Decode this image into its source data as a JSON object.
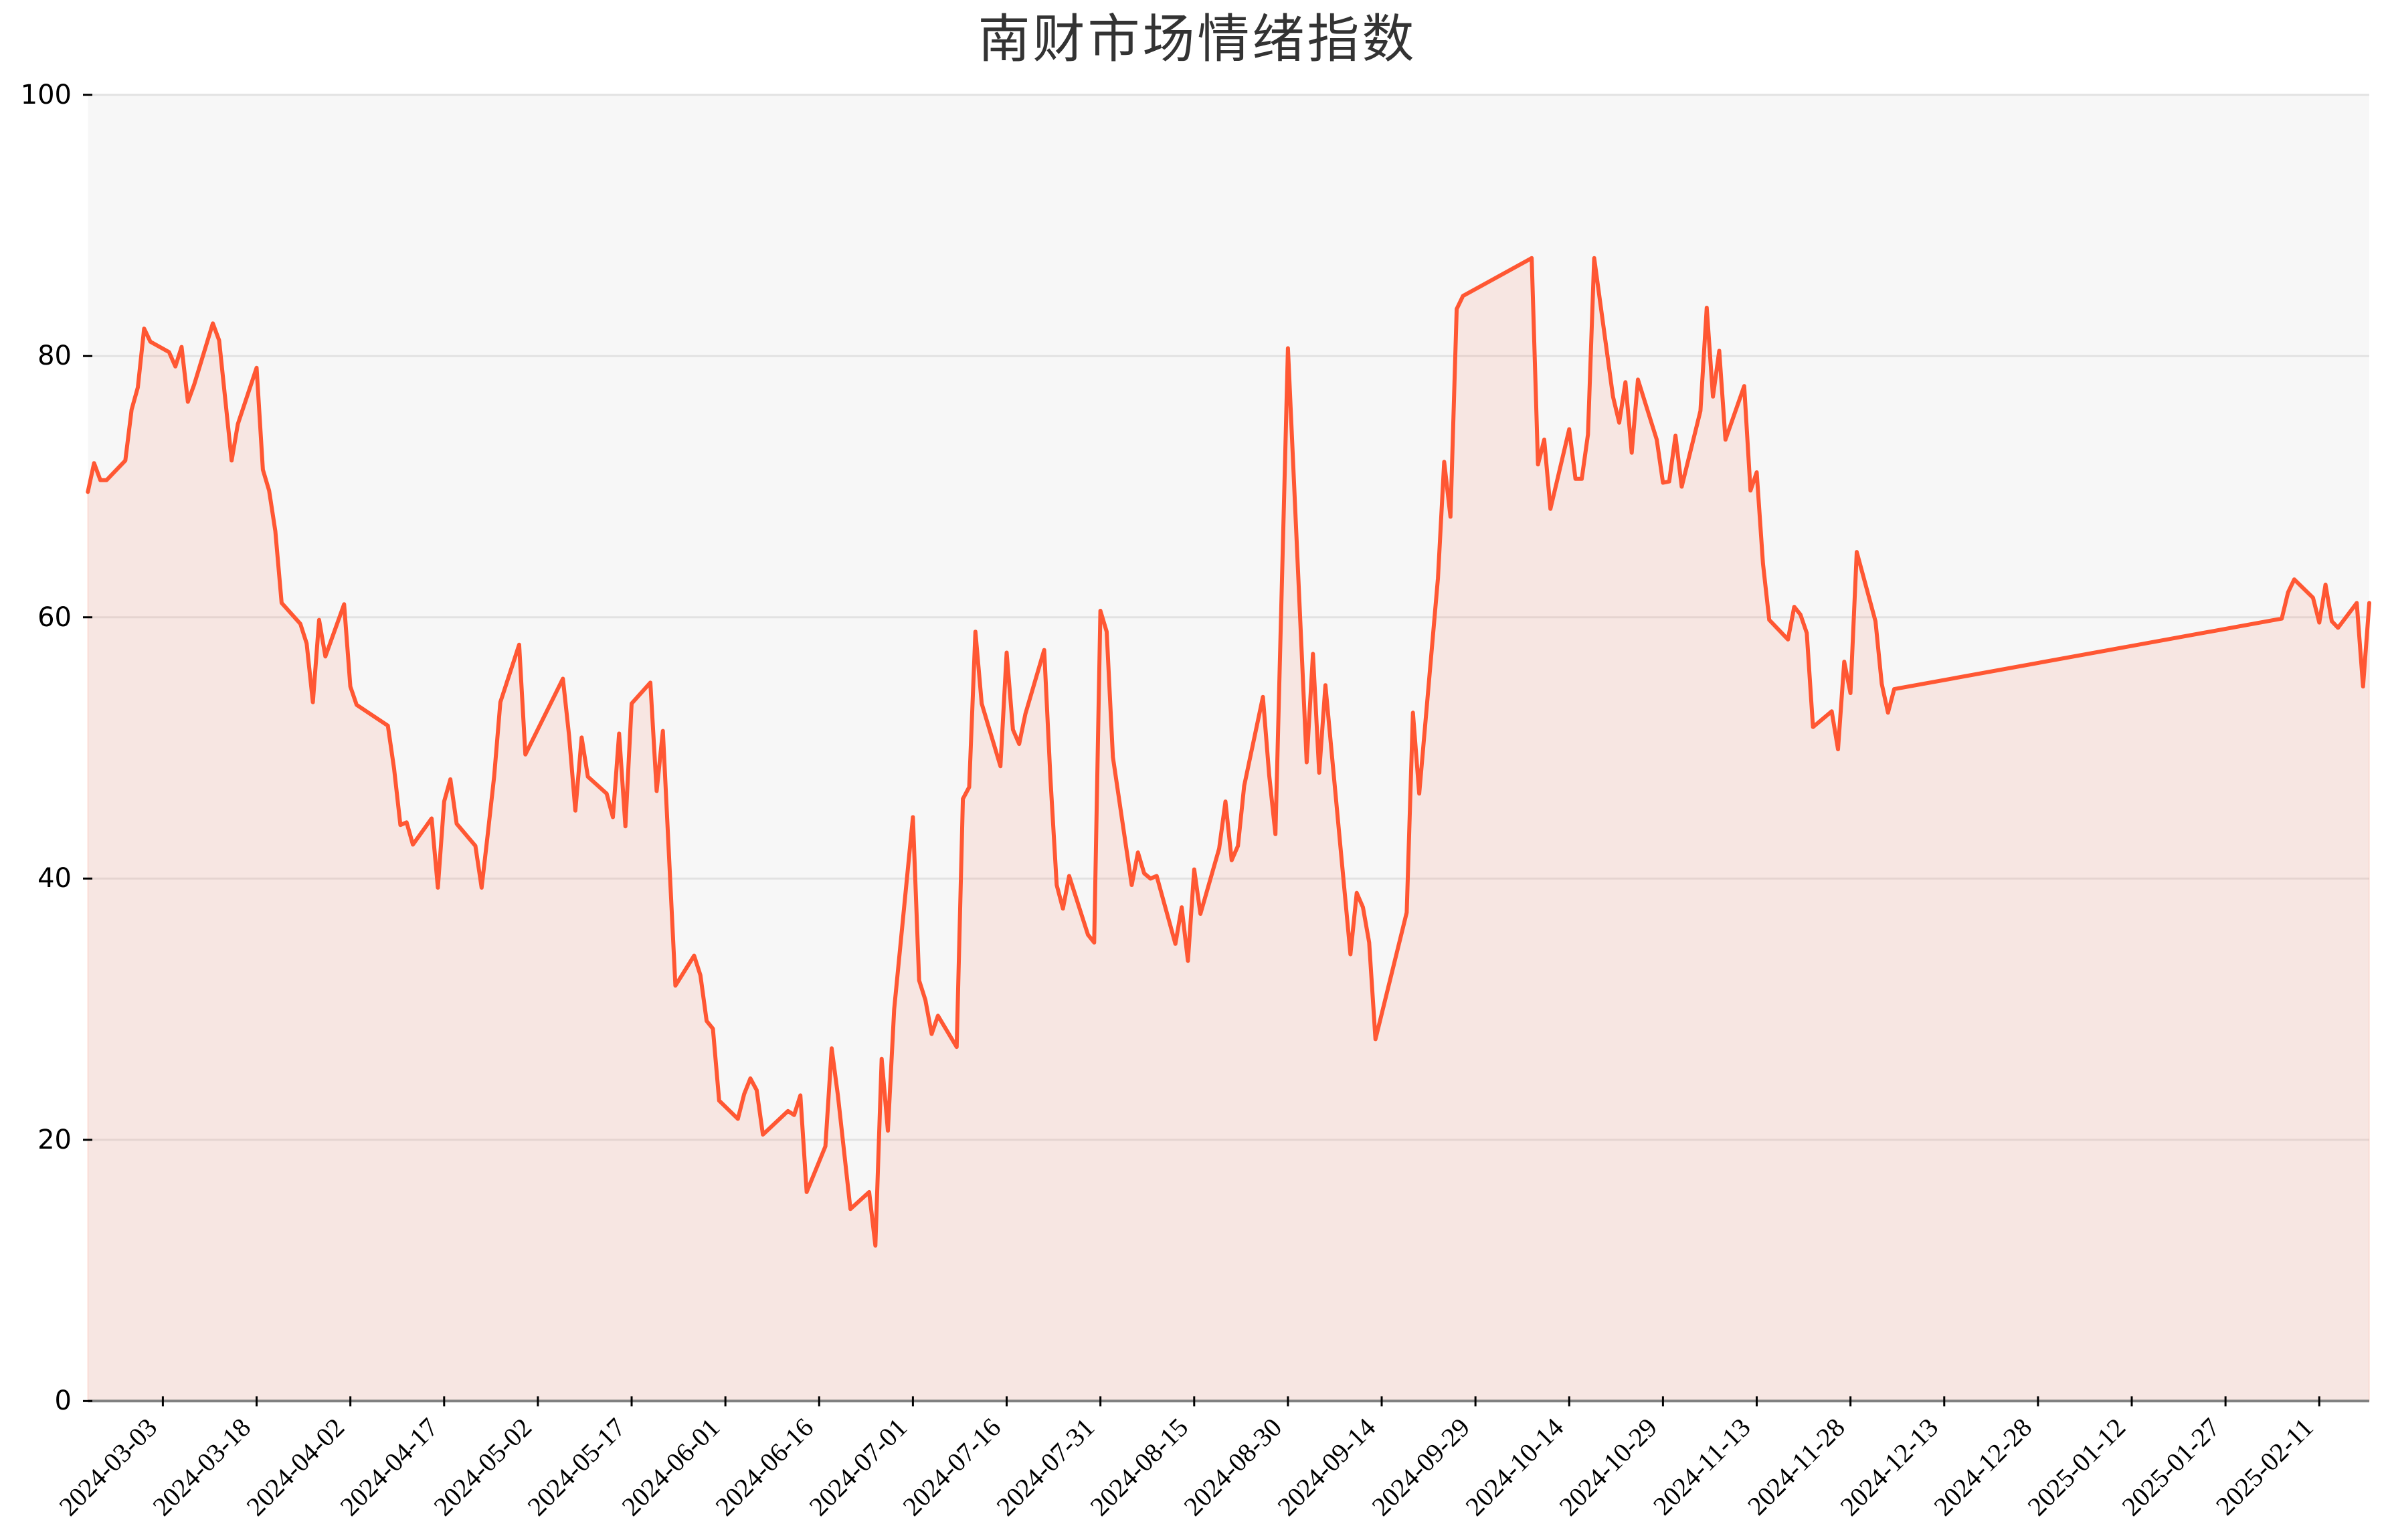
{
  "title": "南财市场情绪指数",
  "style": {
    "line_color": "#FF5733",
    "fill_color": "#FF5733",
    "fill_alpha": 0.1,
    "plot_bg": "#F7F7F7",
    "grid_color": "#E2E2E2",
    "axis_color": "#808080",
    "tick_color": "#000000"
  },
  "chart_data": {
    "type": "area",
    "title": "南财市场情绪指数",
    "xlabel": "",
    "ylabel": "",
    "xlim": [
      "2024-02-20",
      "2025-02-19"
    ],
    "ylim": [
      0,
      100
    ],
    "yticks": [
      0,
      20,
      40,
      60,
      80,
      100
    ],
    "xticks": [
      "2024-03-03",
      "2024-03-18",
      "2024-04-02",
      "2024-04-17",
      "2024-05-02",
      "2024-05-17",
      "2024-06-01",
      "2024-06-16",
      "2024-07-01",
      "2024-07-16",
      "2024-07-31",
      "2024-08-15",
      "2024-08-30",
      "2024-09-14",
      "2024-09-29",
      "2024-10-14",
      "2024-10-29",
      "2024-11-13",
      "2024-11-28",
      "2024-12-13",
      "2024-12-28",
      "2025-01-12",
      "2025-01-27",
      "2025-02-11"
    ],
    "xtick_rotation": 45,
    "grid": {
      "x": false,
      "y": true
    },
    "legend": null,
    "x": [
      "2024-02-20",
      "2024-02-21",
      "2024-02-22",
      "2024-02-23",
      "2024-02-26",
      "2024-02-27",
      "2024-02-28",
      "2024-02-29",
      "2024-03-01",
      "2024-03-04",
      "2024-03-05",
      "2024-03-06",
      "2024-03-07",
      "2024-03-08",
      "2024-03-11",
      "2024-03-12",
      "2024-03-14",
      "2024-03-15",
      "2024-03-18",
      "2024-03-19",
      "2024-03-20",
      "2024-03-21",
      "2024-03-22",
      "2024-03-25",
      "2024-03-26",
      "2024-03-27",
      "2024-03-28",
      "2024-03-29",
      "2024-04-01",
      "2024-04-02",
      "2024-04-03",
      "2024-04-08",
      "2024-04-09",
      "2024-04-10",
      "2024-04-11",
      "2024-04-12",
      "2024-04-15",
      "2024-04-16",
      "2024-04-17",
      "2024-04-18",
      "2024-04-19",
      "2024-04-22",
      "2024-04-23",
      "2024-04-24",
      "2024-04-25",
      "2024-04-26",
      "2024-04-29",
      "2024-04-30",
      "2024-05-06",
      "2024-05-07",
      "2024-05-08",
      "2024-05-09",
      "2024-05-10",
      "2024-05-13",
      "2024-05-14",
      "2024-05-15",
      "2024-05-16",
      "2024-05-17",
      "2024-05-20",
      "2024-05-21",
      "2024-05-22",
      "2024-05-24",
      "2024-05-27",
      "2024-05-28",
      "2024-05-29",
      "2024-05-30",
      "2024-05-31",
      "2024-06-03",
      "2024-06-04",
      "2024-06-05",
      "2024-06-06",
      "2024-06-07",
      "2024-06-11",
      "2024-06-12",
      "2024-06-13",
      "2024-06-14",
      "2024-06-17",
      "2024-06-18",
      "2024-06-19",
      "2024-06-21",
      "2024-06-24",
      "2024-06-25",
      "2024-06-26",
      "2024-06-27",
      "2024-06-28",
      "2024-07-01",
      "2024-07-02",
      "2024-07-03",
      "2024-07-04",
      "2024-07-05",
      "2024-07-08",
      "2024-07-09",
      "2024-07-10",
      "2024-07-11",
      "2024-07-12",
      "2024-07-15",
      "2024-07-16",
      "2024-07-17",
      "2024-07-18",
      "2024-07-19",
      "2024-07-22",
      "2024-07-23",
      "2024-07-24",
      "2024-07-25",
      "2024-07-26",
      "2024-07-29",
      "2024-07-30",
      "2024-07-31",
      "2024-08-01",
      "2024-08-02",
      "2024-08-05",
      "2024-08-06",
      "2024-08-07",
      "2024-08-08",
      "2024-08-09",
      "2024-08-12",
      "2024-08-13",
      "2024-08-14",
      "2024-08-15",
      "2024-08-16",
      "2024-08-19",
      "2024-08-20",
      "2024-08-21",
      "2024-08-22",
      "2024-08-23",
      "2024-08-26",
      "2024-08-27",
      "2024-08-28",
      "2024-08-30",
      "2024-09-02",
      "2024-09-03",
      "2024-09-04",
      "2024-09-05",
      "2024-09-09",
      "2024-09-10",
      "2024-09-11",
      "2024-09-12",
      "2024-09-13",
      "2024-09-18",
      "2024-09-19",
      "2024-09-20",
      "2024-09-23",
      "2024-09-24",
      "2024-09-25",
      "2024-09-26",
      "2024-09-27",
      "2024-10-08",
      "2024-10-09",
      "2024-10-10",
      "2024-10-11",
      "2024-10-14",
      "2024-10-15",
      "2024-10-16",
      "2024-10-17",
      "2024-10-18",
      "2024-10-21",
      "2024-10-22",
      "2024-10-23",
      "2024-10-24",
      "2024-10-25",
      "2024-10-28",
      "2024-10-29",
      "2024-10-30",
      "2024-10-31",
      "2024-11-01",
      "2024-11-04",
      "2024-11-05",
      "2024-11-06",
      "2024-11-07",
      "2024-11-08",
      "2024-11-11",
      "2024-11-12",
      "2024-11-13",
      "2024-11-14",
      "2024-11-15",
      "2024-11-18",
      "2024-11-19",
      "2024-11-20",
      "2024-11-21",
      "2024-11-22",
      "2024-11-25",
      "2024-11-26",
      "2024-11-27",
      "2024-11-28",
      "2024-11-29",
      "2024-12-02",
      "2024-12-03",
      "2024-12-04",
      "2024-12-05",
      "2025-02-05",
      "2025-02-06",
      "2025-02-07",
      "2025-02-10",
      "2025-02-11",
      "2025-02-12",
      "2025-02-13",
      "2025-02-14",
      "2025-02-17",
      "2025-02-18",
      "2025-02-19"
    ],
    "values": [
      69.6,
      71.8,
      70.5,
      70.5,
      72.0,
      75.9,
      77.6,
      82.1,
      81.1,
      80.3,
      79.2,
      80.7,
      76.5,
      77.8,
      82.5,
      81.2,
      72.0,
      74.8,
      79.1,
      71.3,
      69.7,
      66.6,
      61.1,
      59.5,
      58.0,
      53.5,
      59.8,
      57.0,
      61.0,
      54.7,
      53.3,
      51.7,
      48.4,
      44.1,
      44.3,
      42.6,
      44.6,
      39.3,
      45.9,
      47.6,
      44.2,
      42.5,
      39.3,
      43.5,
      47.8,
      53.5,
      57.9,
      49.5,
      55.3,
      50.9,
      45.2,
      50.8,
      47.8,
      46.5,
      44.7,
      51.1,
      44.0,
      53.4,
      55.0,
      46.7,
      51.3,
      31.8,
      34.1,
      32.6,
      29.1,
      28.5,
      23.0,
      21.6,
      23.5,
      24.7,
      23.8,
      20.4,
      22.2,
      21.9,
      23.4,
      16.0,
      19.5,
      27.0,
      23.4,
      14.7,
      16.0,
      11.9,
      26.2,
      20.7,
      30.0,
      44.7,
      32.2,
      30.7,
      28.1,
      29.5,
      27.1,
      46.1,
      47.0,
      58.9,
      53.4,
      48.6,
      57.3,
      51.4,
      50.3,
      52.6,
      57.5,
      47.7,
      39.5,
      37.7,
      40.2,
      35.7,
      35.1,
      60.5,
      58.9,
      49.3,
      39.5,
      42.0,
      40.4,
      40.0,
      40.2,
      35.0,
      37.8,
      33.7,
      40.7,
      37.3,
      42.3,
      45.9,
      41.4,
      42.5,
      47.1,
      53.9,
      47.9,
      43.4,
      80.6,
      48.9,
      57.2,
      48.1,
      54.8,
      34.2,
      38.9,
      37.8,
      35.1,
      27.7,
      37.4,
      52.7,
      46.5,
      63.0,
      71.9,
      67.7,
      83.6,
      84.6,
      87.5,
      71.7,
      73.6,
      68.3,
      74.4,
      70.6,
      70.6,
      74.0,
      87.5,
      76.9,
      74.9,
      78.0,
      72.6,
      78.2,
      73.6,
      70.3,
      70.4,
      73.9,
      70.0,
      75.8,
      83.7,
      76.9,
      80.4,
      73.6,
      77.7,
      69.7,
      71.1,
      64.1,
      59.8,
      58.3,
      60.8,
      60.2,
      58.8,
      51.6,
      52.8,
      49.9,
      56.6,
      54.2,
      65.0,
      59.7,
      54.9,
      52.7,
      54.5,
      59.9,
      61.9,
      62.9,
      61.5,
      59.6,
      62.5,
      59.7,
      59.2,
      61.1,
      54.7,
      61.1
    ]
  }
}
